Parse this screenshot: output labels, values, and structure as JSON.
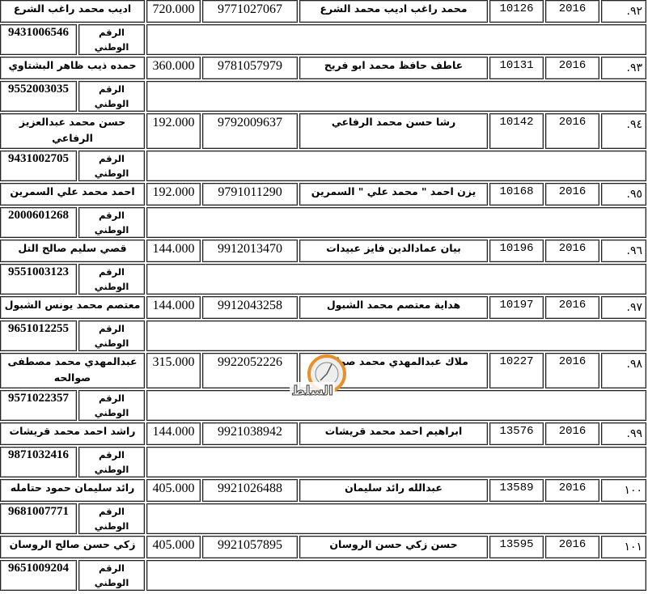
{
  "national_id_label": "الرقم الوطني",
  "rows": [
    {
      "index": "٩٢.",
      "year": "2016",
      "id": "10126",
      "student": "محمد راغب اديب محمد الشرع",
      "number": "9771027067",
      "amount": "720.000",
      "guardian": "اديب محمد راغب الشرع",
      "national_id": "9431006546"
    },
    {
      "index": "٩٣.",
      "year": "2016",
      "id": "10131",
      "student": "عاطف حافظ محمد ابو فريح",
      "number": "9781057979",
      "amount": "360.000",
      "guardian": "حمده ذيب ظاهر البشتاوي",
      "national_id": "9552003035"
    },
    {
      "index": "٩٤.",
      "year": "2016",
      "id": "10142",
      "student": "رشا حسن محمد الرفاعي",
      "number": "9792009637",
      "amount": "192.000",
      "guardian": "حسن محمد عبدالعزيز الرفاعي",
      "national_id": "9431002705",
      "tall": true
    },
    {
      "index": "٩٥.",
      "year": "2016",
      "id": "10168",
      "student": "يزن احمد \" محمد علي \" السمرين",
      "number": "9791011290",
      "amount": "192.000",
      "guardian": "احمد محمد علي السمرين",
      "national_id": "2000601268"
    },
    {
      "index": "٩٦.",
      "year": "2016",
      "id": "10196",
      "student": "بيان عمادالدين فايز عبيدات",
      "number": "9912013470",
      "amount": "144.000",
      "guardian": "قصي سليم صالح التل",
      "national_id": "9551003123"
    },
    {
      "index": "٩٧.",
      "year": "2016",
      "id": "10197",
      "student": "هداية معتصم محمد الشبول",
      "number": "9912043258",
      "amount": "144.000",
      "guardian": "معتصم محمد يونس الشبول",
      "national_id": "9651012255"
    },
    {
      "index": "٩٨.",
      "year": "2016",
      "id": "10227",
      "student": "ملاك عبدالمهدي محمد صوالحه",
      "number": "9922052226",
      "amount": "315.000",
      "guardian": "عبدالمهدي محمد مصطفى صوالحه",
      "national_id": "9571022357",
      "tall": true
    },
    {
      "index": "٩٩.",
      "year": "2016",
      "id": "13576",
      "student": "ابراهيم احمد محمد قريشات",
      "number": "9921038942",
      "amount": "144.000",
      "guardian": "راشد احمد محمد قريشات",
      "national_id": "9871032416"
    },
    {
      "index": "١٠٠",
      "year": "2016",
      "id": "13589",
      "student": "عبدالله رائد سليمان",
      "number": "9921026488",
      "amount": "405.000",
      "guardian": "رائد سليمان حمود حتامله",
      "national_id": "9681007771"
    },
    {
      "index": "١٠١",
      "year": "2016",
      "id": "13595",
      "student": "حسن زكي حسن الروسان",
      "number": "9921057895",
      "amount": "405.000",
      "guardian": "زكي حسن صالح الروسان",
      "national_id": "9651009204"
    }
  ],
  "colors": {
    "border": "#222222",
    "logo": "#e8902a"
  },
  "watermark": "السلط"
}
